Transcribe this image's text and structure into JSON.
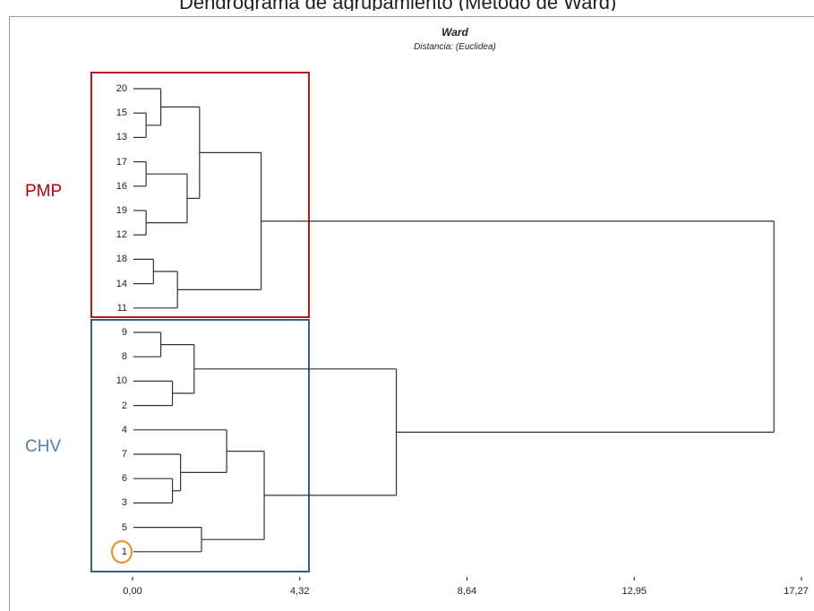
{
  "top_caption": "Dendrograma de agrupamiento (Método de Ward)",
  "title": "Ward",
  "subtitle": "Distancia: (Euclidea)",
  "group_labels": {
    "pmp": "PMP",
    "chv": "CHV"
  },
  "colors": {
    "pmp_box": "#c0161c",
    "chv_box": "#3f5b8c",
    "pmp_text": "#c00000",
    "chv_text": "#4f81bd",
    "highlight": "#f08a24",
    "lines": "#333333"
  },
  "highlighted_leaf": "1",
  "chart_data": {
    "type": "dendrogram",
    "method": "Ward",
    "distance": "Euclidea",
    "leaf_order": [
      "20",
      "15",
      "13",
      "17",
      "16",
      "19",
      "12",
      "18",
      "14",
      "11",
      "9",
      "8",
      "10",
      "2",
      "4",
      "7",
      "6",
      "3",
      "5",
      "1"
    ],
    "x_ticks": [
      "0,00",
      "4,32",
      "8,64",
      "12,95",
      "17,27"
    ],
    "xlim": [
      0,
      17.27
    ],
    "groups": [
      {
        "name": "PMP",
        "leaves": [
          "20",
          "15",
          "13",
          "17",
          "16",
          "19",
          "12",
          "18",
          "14",
          "11"
        ]
      },
      {
        "name": "CHV",
        "leaves": [
          "9",
          "8",
          "10",
          "2",
          "4",
          "7",
          "6",
          "3",
          "5",
          "1"
        ]
      }
    ],
    "merges": [
      {
        "a": "15",
        "b": "13",
        "height": 0.35,
        "id": "m1"
      },
      {
        "a": "20",
        "b": "m1",
        "height": 0.73,
        "id": "m2"
      },
      {
        "a": "17",
        "b": "16",
        "height": 0.35,
        "id": "m3"
      },
      {
        "a": "19",
        "b": "12",
        "height": 0.35,
        "id": "m4"
      },
      {
        "a": "m3",
        "b": "m4",
        "height": 1.41,
        "id": "m5"
      },
      {
        "a": "m2",
        "b": "m5",
        "height": 1.73,
        "id": "m6"
      },
      {
        "a": "18",
        "b": "14",
        "height": 0.54,
        "id": "m7"
      },
      {
        "a": "m7",
        "b": "11",
        "height": 1.16,
        "id": "m8"
      },
      {
        "a": "m6",
        "b": "m8",
        "height": 3.32,
        "id": "m9"
      },
      {
        "a": "9",
        "b": "8",
        "height": 0.73,
        "id": "m10"
      },
      {
        "a": "10",
        "b": "2",
        "height": 1.03,
        "id": "m11"
      },
      {
        "a": "m10",
        "b": "m11",
        "height": 1.59,
        "id": "m12"
      },
      {
        "a": "6",
        "b": "3",
        "height": 1.03,
        "id": "m13"
      },
      {
        "a": "7",
        "b": "m13",
        "height": 1.24,
        "id": "m14"
      },
      {
        "a": "4",
        "b": "m14",
        "height": 2.43,
        "id": "m15"
      },
      {
        "a": "5",
        "b": "1",
        "height": 1.78,
        "id": "m16"
      },
      {
        "a": "m15",
        "b": "m16",
        "height": 3.4,
        "id": "m17"
      },
      {
        "a": "m12",
        "b": "m17",
        "height": 6.81,
        "id": "m18"
      },
      {
        "a": "m9",
        "b": "m18",
        "height": 16.56,
        "id": "m19"
      }
    ]
  }
}
